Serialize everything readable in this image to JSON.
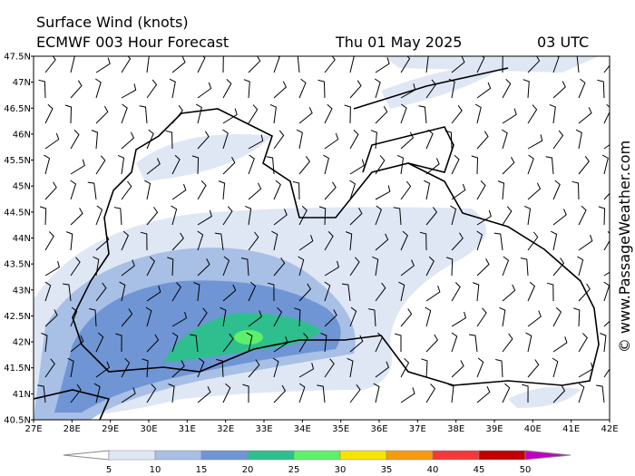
{
  "header": {
    "title": "Surface Wind (knots)",
    "model": "ECMWF 003 Hour Forecast",
    "date": "Thu 01 May 2025",
    "time": "03 UTC"
  },
  "latitude_labels": [
    "47.5N",
    "47N",
    "46.5N",
    "46N",
    "45.5N",
    "45N",
    "44.5N",
    "44N",
    "43.5N",
    "43N",
    "42.5N",
    "42N",
    "41.5N",
    "41N",
    "40.5N"
  ],
  "longitude_labels": [
    "27E",
    "28E",
    "29E",
    "30E",
    "31E",
    "32E",
    "33E",
    "34E",
    "35E",
    "36E",
    "37E",
    "38E",
    "39E",
    "40E",
    "41E",
    "42E"
  ],
  "legend": {
    "labels": [
      5,
      10,
      15,
      20,
      25,
      30,
      35,
      40,
      45,
      50
    ],
    "colors": [
      "#ffffff",
      "#dfe7f5",
      "#a8bfe6",
      "#6f95d4",
      "#2fbf8f",
      "#5ef06a",
      "#f6e400",
      "#f59a10",
      "#f03a3a",
      "#c00000",
      "#c000c0"
    ]
  },
  "watermark": "© www.PassageWeather.com"
}
